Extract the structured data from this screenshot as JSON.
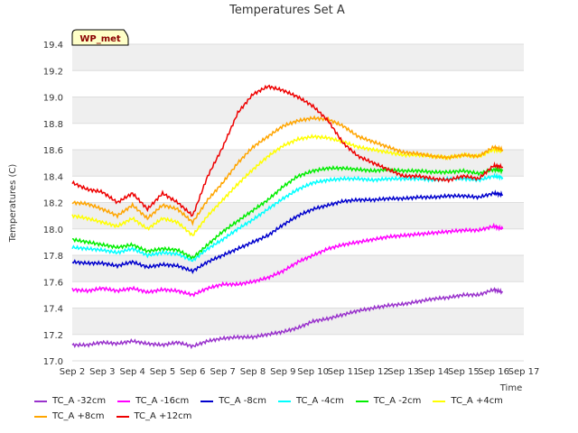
{
  "chart_data": {
    "type": "line",
    "title": "Temperatures Set A",
    "xlabel": "Time",
    "ylabel": "Temperatures (C)",
    "badge": "WP_met",
    "x_ticks": [
      "Sep 2",
      "Sep 3",
      "Sep 4",
      "Sep 5",
      "Sep 6",
      "Sep 7",
      "Sep 8",
      "Sep 9",
      "Sep 10",
      "Sep 11",
      "Sep 12",
      "Sep 13",
      "Sep 14",
      "Sep 15",
      "Sep 16",
      "Sep 17"
    ],
    "xlim": [
      2,
      17
    ],
    "ylim": [
      17.0,
      19.4
    ],
    "y_ticks": [
      "17.0",
      "17.2",
      "17.4",
      "17.6",
      "17.8",
      "18.0",
      "18.2",
      "18.4",
      "18.6",
      "18.8",
      "19.0",
      "19.2",
      "19.4"
    ],
    "grid": true,
    "legend_position": "bottom",
    "x": [
      2.0,
      2.5,
      3.0,
      3.5,
      4.0,
      4.5,
      5.0,
      5.5,
      6.0,
      6.5,
      7.0,
      7.5,
      8.0,
      8.5,
      9.0,
      9.5,
      10.0,
      10.5,
      11.0,
      11.5,
      12.0,
      12.5,
      13.0,
      13.5,
      14.0,
      14.5,
      15.0,
      15.5,
      16.0,
      16.3
    ],
    "series": [
      {
        "name": "TC_A -32cm",
        "color": "#9932CC",
        "values": [
          17.12,
          17.12,
          17.14,
          17.13,
          17.15,
          17.13,
          17.12,
          17.14,
          17.11,
          17.15,
          17.17,
          17.18,
          17.18,
          17.2,
          17.22,
          17.25,
          17.3,
          17.32,
          17.35,
          17.38,
          17.4,
          17.42,
          17.43,
          17.45,
          17.47,
          17.48,
          17.5,
          17.5,
          17.54,
          17.52
        ]
      },
      {
        "name": "TC_A -16cm",
        "color": "#FF00FF",
        "values": [
          17.54,
          17.53,
          17.55,
          17.53,
          17.55,
          17.52,
          17.54,
          17.53,
          17.5,
          17.55,
          17.58,
          17.58,
          17.6,
          17.63,
          17.68,
          17.75,
          17.8,
          17.85,
          17.88,
          17.9,
          17.92,
          17.94,
          17.95,
          17.96,
          17.97,
          17.98,
          17.99,
          17.99,
          18.02,
          18.0
        ]
      },
      {
        "name": "TC_A -8cm",
        "color": "#0000CD",
        "values": [
          17.75,
          17.74,
          17.74,
          17.72,
          17.75,
          17.71,
          17.73,
          17.72,
          17.68,
          17.75,
          17.8,
          17.85,
          17.9,
          17.95,
          18.03,
          18.1,
          18.15,
          18.18,
          18.21,
          18.22,
          18.22,
          18.23,
          18.23,
          18.24,
          18.24,
          18.25,
          18.25,
          18.24,
          18.27,
          18.26
        ]
      },
      {
        "name": "TC_A -4cm",
        "color": "#00FFFF",
        "values": [
          17.86,
          17.85,
          17.84,
          17.82,
          17.85,
          17.8,
          17.82,
          17.81,
          17.76,
          17.85,
          17.92,
          18.0,
          18.07,
          18.15,
          18.23,
          18.3,
          18.35,
          18.37,
          18.38,
          18.38,
          18.37,
          18.38,
          18.38,
          18.38,
          18.37,
          18.38,
          18.38,
          18.37,
          18.4,
          18.39
        ]
      },
      {
        "name": "TC_A -2cm",
        "color": "#00EE00",
        "values": [
          17.92,
          17.9,
          17.88,
          17.86,
          17.88,
          17.83,
          17.85,
          17.84,
          17.78,
          17.88,
          17.98,
          18.06,
          18.14,
          18.22,
          18.32,
          18.4,
          18.44,
          18.46,
          18.46,
          18.45,
          18.44,
          18.45,
          18.44,
          18.44,
          18.43,
          18.43,
          18.44,
          18.42,
          18.45,
          18.44
        ]
      },
      {
        "name": "TC_A +4cm",
        "color": "#FFFF00",
        "values": [
          18.1,
          18.08,
          18.05,
          18.02,
          18.08,
          18.0,
          18.08,
          18.05,
          17.95,
          18.1,
          18.22,
          18.34,
          18.45,
          18.55,
          18.63,
          18.68,
          18.7,
          18.69,
          18.66,
          18.62,
          18.6,
          18.58,
          18.56,
          18.56,
          18.55,
          18.54,
          18.56,
          18.55,
          18.6,
          18.59
        ]
      },
      {
        "name": "TC_A +8cm",
        "color": "#FFA500",
        "values": [
          18.2,
          18.19,
          18.15,
          18.1,
          18.18,
          18.08,
          18.18,
          18.15,
          18.05,
          18.22,
          18.35,
          18.5,
          18.62,
          18.7,
          18.78,
          18.82,
          18.84,
          18.83,
          18.78,
          18.7,
          18.66,
          18.62,
          18.58,
          18.57,
          18.55,
          18.54,
          18.56,
          18.55,
          18.62,
          18.6
        ]
      },
      {
        "name": "TC_A +12cm",
        "color": "#EE0000",
        "values": [
          18.35,
          18.3,
          18.28,
          18.2,
          18.27,
          18.15,
          18.27,
          18.2,
          18.1,
          18.4,
          18.62,
          18.88,
          19.02,
          19.08,
          19.05,
          19.0,
          18.93,
          18.82,
          18.65,
          18.55,
          18.5,
          18.45,
          18.4,
          18.4,
          18.38,
          18.37,
          18.4,
          18.38,
          18.48,
          18.47
        ]
      }
    ]
  }
}
